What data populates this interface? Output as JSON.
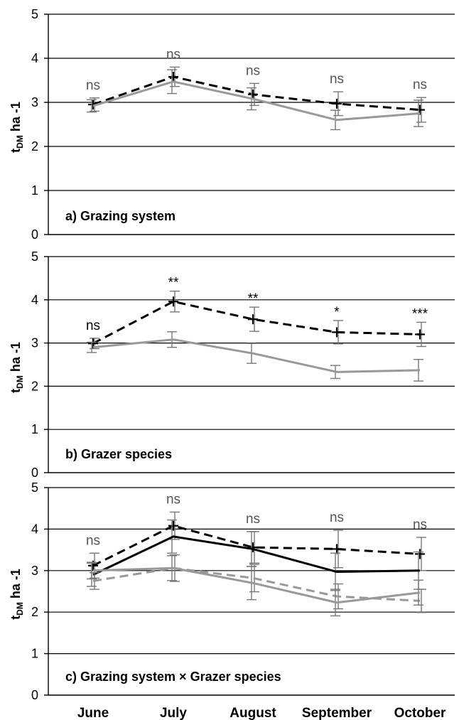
{
  "figure": {
    "x_categories": [
      "June",
      "July",
      "August",
      "September",
      "October"
    ]
  },
  "chart_data": [
    {
      "type": "line",
      "title": "a) Grazing system",
      "ylabel": "tDM ha -1",
      "ylabel_main": "t",
      "ylabel_sub": "DM",
      "ylabel_rest": " ha -1",
      "ylim": [
        0,
        5
      ],
      "yticks": [
        "0",
        "1",
        "2",
        "3",
        "4",
        "5"
      ],
      "grid": true,
      "categories": [
        "June",
        "July",
        "August",
        "September",
        "October"
      ],
      "significance": [
        "ns",
        "ns",
        "ns",
        "ns",
        "ns"
      ],
      "significance_color": "#555555",
      "series": [
        {
          "values": [
            2.95,
            3.58,
            3.18,
            2.97,
            2.83
          ],
          "error": [
            0.15,
            0.22,
            0.25,
            0.27,
            0.28
          ],
          "color": "#000000",
          "dash": "dashed",
          "marker": "plus"
        },
        {
          "values": [
            2.92,
            3.47,
            3.08,
            2.6,
            2.75
          ],
          "error": [
            0.14,
            0.27,
            0.25,
            0.22,
            0.3
          ],
          "color": "#999999",
          "dash": "solid",
          "marker": "none"
        }
      ]
    },
    {
      "type": "line",
      "title": "b) Grazer species",
      "ylabel": "tDM ha -1",
      "ylabel_main": "t",
      "ylabel_sub": "DM",
      "ylabel_rest": " ha -1",
      "ylim": [
        0,
        5
      ],
      "yticks": [
        "0",
        "1",
        "2",
        "3",
        "4",
        "5"
      ],
      "grid": true,
      "categories": [
        "June",
        "July",
        "August",
        "September",
        "October"
      ],
      "significance": [
        "ns",
        "**",
        "**",
        "*",
        "***"
      ],
      "significance_color": "#000000",
      "series": [
        {
          "values": [
            2.99,
            3.96,
            3.55,
            3.25,
            3.2
          ],
          "error": [
            0.12,
            0.24,
            0.28,
            0.27,
            0.28
          ],
          "color": "#000000",
          "dash": "dashed",
          "marker": "plus"
        },
        {
          "values": [
            2.9,
            3.08,
            2.76,
            2.33,
            2.37
          ],
          "error": [
            0.12,
            0.18,
            0.23,
            0.15,
            0.25
          ],
          "color": "#999999",
          "dash": "solid",
          "marker": "none"
        }
      ]
    },
    {
      "type": "line",
      "title": "c) Grazing system × Grazer species",
      "ylabel": "tDM ha -1",
      "ylabel_main": "t",
      "ylabel_sub": "DM",
      "ylabel_rest": " ha -1",
      "ylim": [
        0,
        5
      ],
      "yticks": [
        "0",
        "1",
        "2",
        "3",
        "4",
        "5"
      ],
      "grid": true,
      "categories": [
        "June",
        "July",
        "August",
        "September",
        "October"
      ],
      "significance": [
        "ns",
        "ns",
        "ns",
        "ns",
        "ns"
      ],
      "significance_color": "#555555",
      "series": [
        {
          "values": [
            3.12,
            4.08,
            3.56,
            3.52,
            3.4
          ],
          "error": [
            0.3,
            0.33,
            0.38,
            0.45,
            0.4
          ],
          "color": "#000000",
          "dash": "dashed",
          "marker": "plus"
        },
        {
          "values": [
            2.9,
            3.82,
            3.52,
            2.97,
            3.0
          ],
          "error": [
            0.28,
            0.4,
            0.42,
            0.45,
            0.45
          ],
          "color": "#000000",
          "dash": "solid",
          "marker": "none"
        },
        {
          "values": [
            2.75,
            3.06,
            2.82,
            2.38,
            2.27
          ],
          "error": [
            0.2,
            0.32,
            0.33,
            0.3,
            0.28
          ],
          "color": "#999999",
          "dash": "dashed",
          "marker": "none"
        },
        {
          "values": [
            3.0,
            3.06,
            2.7,
            2.23,
            2.47
          ],
          "error": [
            0.2,
            0.3,
            0.4,
            0.32,
            0.3
          ],
          "color": "#999999",
          "dash": "solid",
          "marker": "none"
        }
      ]
    }
  ]
}
